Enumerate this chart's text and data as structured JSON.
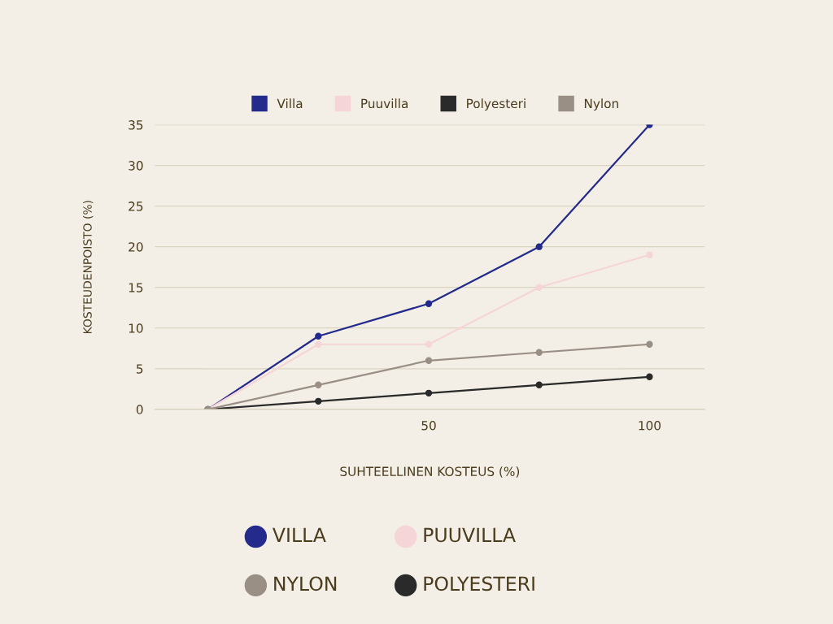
{
  "chart_data": {
    "type": "line",
    "xlabel": "SUHTEELLINEN KOSTEUS (%)",
    "ylabel": "KOSTEUDENPOISTO (%)",
    "x": [
      0,
      25,
      50,
      75,
      100
    ],
    "series": [
      {
        "name": "Villa",
        "color": "#232a8c",
        "values": [
          0,
          9,
          13,
          20,
          35
        ]
      },
      {
        "name": "Puuvilla",
        "color": "#f5d5d8",
        "values": [
          0,
          8,
          8,
          15,
          19
        ]
      },
      {
        "name": "Polyesteri",
        "color": "#2a2a2a",
        "values": [
          0,
          1,
          2,
          3,
          4
        ]
      },
      {
        "name": "Nylon",
        "color": "#9a8f85",
        "values": [
          0,
          3,
          6,
          7,
          8
        ]
      }
    ],
    "xlim": [
      -12,
      112.5
    ],
    "xticks": [
      50,
      100
    ],
    "ylim": [
      0,
      35
    ],
    "yticks": [
      0,
      5,
      10,
      15,
      20,
      25,
      30,
      35
    ],
    "grid": "y",
    "legend": "top",
    "marker": "circle",
    "line_style": "solid",
    "annotations": [
      "VILLA",
      "PUUVILLA",
      "NYLON",
      "POLYESTERI"
    ]
  }
}
